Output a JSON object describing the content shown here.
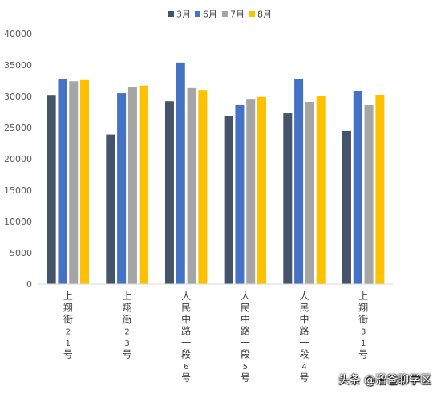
{
  "chart_data": {
    "type": "bar",
    "categories": [
      "上翔街21号",
      "上翔街23号",
      "人民中路一段6号",
      "人民中路一段5号",
      "人民中路一段4号",
      "上翔街31号"
    ],
    "series": [
      {
        "name": "3月",
        "values": [
          30100,
          23900,
          29200,
          26800,
          27300,
          24500
        ]
      },
      {
        "name": "6月",
        "values": [
          32800,
          30500,
          35400,
          28600,
          32800,
          30900
        ]
      },
      {
        "name": "7月",
        "values": [
          32400,
          31500,
          31300,
          29600,
          29100,
          28600
        ]
      },
      {
        "name": "8月",
        "values": [
          32600,
          31700,
          31000,
          29900,
          30000,
          30200
        ]
      }
    ],
    "colors": [
      "#44546a",
      "#4472c4",
      "#a5a5a5",
      "#ffc000"
    ],
    "ylim": [
      0,
      40000
    ],
    "yticks": [
      0,
      5000,
      10000,
      15000,
      20000,
      25000,
      30000,
      35000,
      40000
    ],
    "legend_position": "top-center",
    "grid": false
  },
  "watermark": "头条 @溜爸聊学区"
}
